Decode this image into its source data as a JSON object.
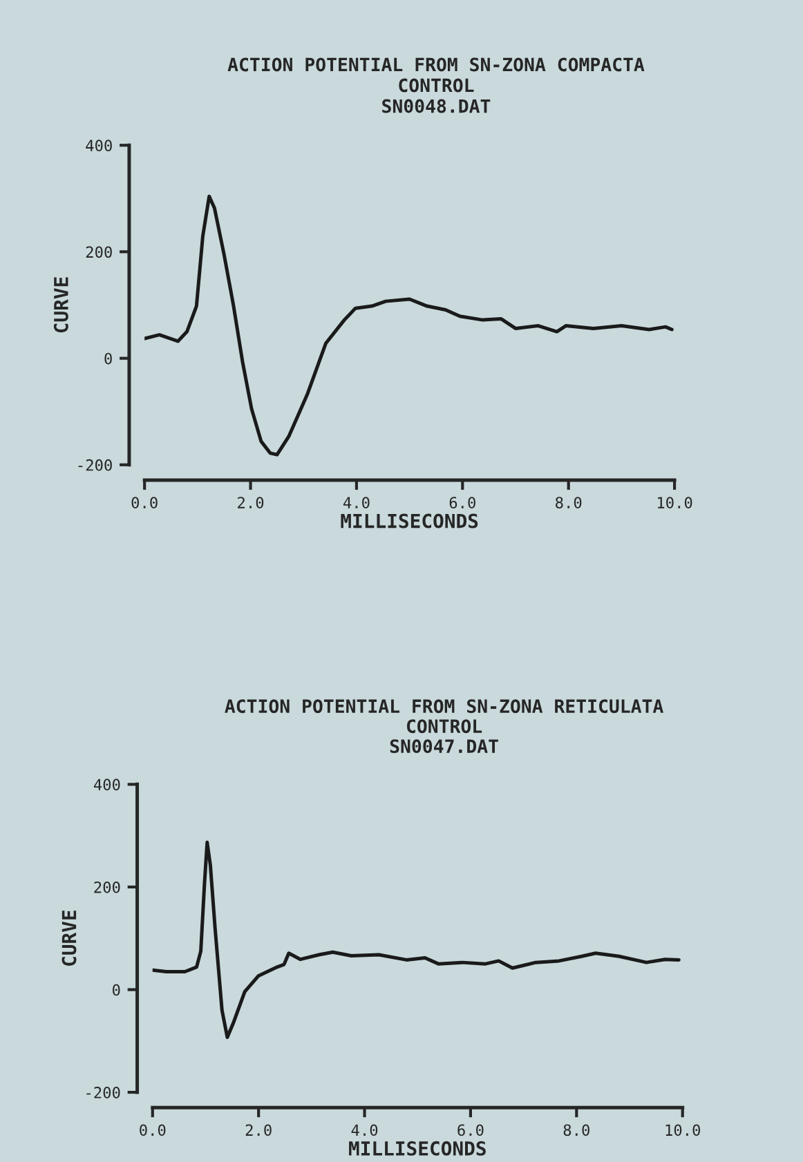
{
  "chart_data": [
    {
      "type": "line",
      "title": "ACTION POTENTIAL FROM SN-ZONA COMPACTA",
      "subtitle": "CONTROL",
      "annotations": [
        "SN0048.DAT"
      ],
      "xlabel": "MILLISECONDS",
      "ylabel": "CURVE",
      "xlim": [
        0,
        10
      ],
      "ylim": [
        -200,
        400
      ],
      "xticks": [
        {
          "value": 0,
          "label": "0.0"
        },
        {
          "value": 2,
          "label": "2.0"
        },
        {
          "value": 4,
          "label": "4.0"
        },
        {
          "value": 6,
          "label": "6.0"
        },
        {
          "value": 8,
          "label": "8.0"
        },
        {
          "value": 10,
          "label": "10.0"
        }
      ],
      "yticks": [
        -200,
        0,
        200,
        400
      ],
      "grid": false,
      "legend": false,
      "x": [
        0.0,
        0.28,
        0.63,
        0.8,
        0.98,
        1.1,
        1.22,
        1.32,
        1.5,
        1.68,
        1.85,
        2.02,
        2.2,
        2.37,
        2.5,
        2.72,
        3.07,
        3.42,
        3.77,
        3.98,
        4.29,
        4.55,
        5.0,
        5.33,
        5.68,
        5.95,
        6.38,
        6.73,
        7.0,
        7.43,
        7.78,
        7.95,
        8.47,
        9.0,
        9.52,
        9.83,
        9.95
      ],
      "series": [
        {
          "color": "#1a1a1a",
          "values": [
            37,
            44,
            32,
            50,
            98,
            230,
            304,
            282,
            195,
            98,
            -7,
            -95,
            -156,
            -178,
            -181,
            -147,
            -68,
            28,
            72,
            94,
            98,
            107,
            111,
            98,
            91,
            79,
            72,
            74,
            56,
            61,
            50,
            61,
            56,
            61,
            54,
            59,
            54
          ]
        }
      ]
    },
    {
      "type": "line",
      "title": "ACTION POTENTIAL FROM SN-ZONA RETICULATA",
      "subtitle": "CONTROL",
      "annotations": [
        "SN0047.DAT"
      ],
      "xlabel": "MILLISECONDS",
      "ylabel": "CURVE",
      "xlim": [
        0,
        10
      ],
      "ylim": [
        -200,
        400
      ],
      "xticks": [
        {
          "value": 0,
          "label": "0.0"
        },
        {
          "value": 2,
          "label": "2.0"
        },
        {
          "value": 4,
          "label": "4.0"
        },
        {
          "value": 6,
          "label": "6.0"
        },
        {
          "value": 8,
          "label": "8.0"
        },
        {
          "value": 10,
          "label": "10.0"
        }
      ],
      "yticks": [
        -200,
        0,
        200,
        400
      ],
      "grid": false,
      "legend": false,
      "x": [
        0.0,
        0.26,
        0.61,
        0.83,
        0.91,
        0.98,
        1.03,
        1.09,
        1.18,
        1.31,
        1.41,
        1.52,
        1.74,
        2.0,
        2.35,
        2.48,
        2.57,
        2.79,
        3.14,
        3.4,
        3.75,
        4.27,
        4.79,
        5.14,
        5.4,
        5.84,
        6.27,
        6.53,
        6.79,
        7.23,
        7.67,
        8.1,
        8.36,
        8.8,
        9.32,
        9.67,
        9.93
      ],
      "series": [
        {
          "color": "#1a1a1a",
          "values": [
            38,
            35,
            35,
            44,
            75,
            207,
            287,
            243,
            119,
            -40,
            -93,
            -66,
            -4,
            27,
            44,
            49,
            71,
            59,
            68,
            73,
            66,
            68,
            58,
            62,
            50,
            53,
            50,
            56,
            42,
            53,
            56,
            65,
            71,
            65,
            53,
            59,
            58
          ]
        }
      ]
    }
  ]
}
